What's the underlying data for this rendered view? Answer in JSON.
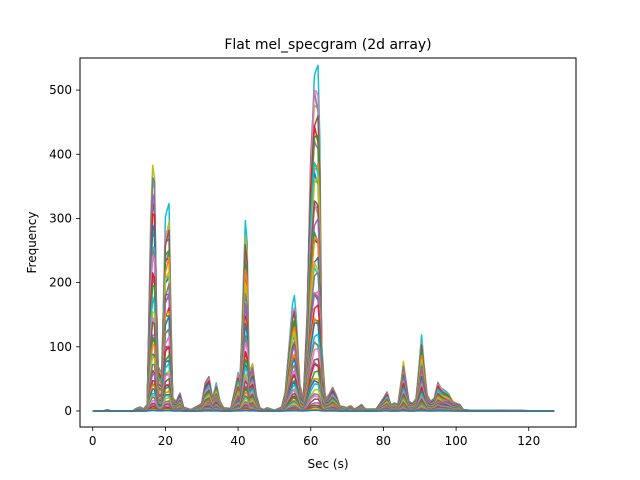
{
  "chart_data": {
    "type": "line",
    "title": "Flat mel_specgram (2d array)",
    "xlabel": "Sec (s)",
    "ylabel": "Frequency",
    "xlim": [
      -3.5,
      133
    ],
    "ylim": [
      -25,
      550
    ],
    "x_ticks": [
      0,
      20,
      40,
      60,
      80,
      100,
      120
    ],
    "y_ticks": [
      0,
      100,
      200,
      300,
      400,
      500
    ],
    "x_range": [
      0,
      127
    ],
    "series_count": 50,
    "grid": false,
    "legend": "none",
    "colors": [
      "#1f77b4",
      "#ff7f0e",
      "#2ca02c",
      "#d62728",
      "#9467bd",
      "#8c564b",
      "#e377c2",
      "#7f7f7f",
      "#bcbd22",
      "#17becf"
    ],
    "envelope": [
      {
        "x": 0,
        "y": 0
      },
      {
        "x": 3,
        "y": 0
      },
      {
        "x": 4,
        "y": 2
      },
      {
        "x": 5,
        "y": 0
      },
      {
        "x": 11,
        "y": 0
      },
      {
        "x": 12,
        "y": 4
      },
      {
        "x": 13,
        "y": 6
      },
      {
        "x": 14,
        "y": 3
      },
      {
        "x": 15,
        "y": 10
      },
      {
        "x": 16,
        "y": 300
      },
      {
        "x": 16.5,
        "y": 377
      },
      {
        "x": 17,
        "y": 365
      },
      {
        "x": 17.5,
        "y": 180
      },
      {
        "x": 18,
        "y": 70
      },
      {
        "x": 19,
        "y": 60
      },
      {
        "x": 20,
        "y": 290
      },
      {
        "x": 21,
        "y": 305
      },
      {
        "x": 21.5,
        "y": 150
      },
      {
        "x": 22,
        "y": 20
      },
      {
        "x": 23,
        "y": 15
      },
      {
        "x": 24,
        "y": 28
      },
      {
        "x": 25,
        "y": 6
      },
      {
        "x": 27,
        "y": 2
      },
      {
        "x": 28,
        "y": 5
      },
      {
        "x": 29,
        "y": 8
      },
      {
        "x": 30,
        "y": 12
      },
      {
        "x": 31,
        "y": 45
      },
      {
        "x": 32,
        "y": 54
      },
      {
        "x": 33,
        "y": 20
      },
      {
        "x": 34,
        "y": 42
      },
      {
        "x": 35,
        "y": 15
      },
      {
        "x": 36,
        "y": 5
      },
      {
        "x": 38,
        "y": 4
      },
      {
        "x": 39,
        "y": 30
      },
      {
        "x": 40,
        "y": 60
      },
      {
        "x": 40.5,
        "y": 45
      },
      {
        "x": 41,
        "y": 110
      },
      {
        "x": 42,
        "y": 280
      },
      {
        "x": 42.5,
        "y": 250
      },
      {
        "x": 43,
        "y": 60
      },
      {
        "x": 44,
        "y": 72
      },
      {
        "x": 45,
        "y": 25
      },
      {
        "x": 46,
        "y": 5
      },
      {
        "x": 47,
        "y": 2
      },
      {
        "x": 48,
        "y": 5
      },
      {
        "x": 49,
        "y": 3
      },
      {
        "x": 50,
        "y": 1
      },
      {
        "x": 52,
        "y": 6
      },
      {
        "x": 53,
        "y": 30
      },
      {
        "x": 54,
        "y": 100
      },
      {
        "x": 55,
        "y": 160
      },
      {
        "x": 55.5,
        "y": 170
      },
      {
        "x": 56,
        "y": 140
      },
      {
        "x": 57,
        "y": 40
      },
      {
        "x": 58,
        "y": 20
      },
      {
        "x": 59,
        "y": 150
      },
      {
        "x": 60,
        "y": 400
      },
      {
        "x": 61,
        "y": 523
      },
      {
        "x": 62,
        "y": 515
      },
      {
        "x": 62.5,
        "y": 400
      },
      {
        "x": 63,
        "y": 100
      },
      {
        "x": 64,
        "y": 20
      },
      {
        "x": 65,
        "y": 25
      },
      {
        "x": 66,
        "y": 37
      },
      {
        "x": 67,
        "y": 25
      },
      {
        "x": 68,
        "y": 8
      },
      {
        "x": 70,
        "y": 5
      },
      {
        "x": 71,
        "y": 8
      },
      {
        "x": 72,
        "y": 3
      },
      {
        "x": 73,
        "y": 6
      },
      {
        "x": 74,
        "y": 10
      },
      {
        "x": 75,
        "y": 3
      },
      {
        "x": 78,
        "y": 3
      },
      {
        "x": 80,
        "y": 20
      },
      {
        "x": 81,
        "y": 30
      },
      {
        "x": 82,
        "y": 10
      },
      {
        "x": 83,
        "y": 12
      },
      {
        "x": 84,
        "y": 10
      },
      {
        "x": 85,
        "y": 50
      },
      {
        "x": 85.5,
        "y": 75
      },
      {
        "x": 86,
        "y": 55
      },
      {
        "x": 87,
        "y": 15
      },
      {
        "x": 88,
        "y": 12
      },
      {
        "x": 89,
        "y": 20
      },
      {
        "x": 90,
        "y": 80
      },
      {
        "x": 90.5,
        "y": 112
      },
      {
        "x": 91,
        "y": 80
      },
      {
        "x": 92,
        "y": 25
      },
      {
        "x": 93,
        "y": 15
      },
      {
        "x": 94,
        "y": 20
      },
      {
        "x": 95,
        "y": 45
      },
      {
        "x": 96,
        "y": 35
      },
      {
        "x": 97,
        "y": 30
      },
      {
        "x": 98,
        "y": 25
      },
      {
        "x": 99,
        "y": 15
      },
      {
        "x": 100,
        "y": 12
      },
      {
        "x": 101,
        "y": 10
      },
      {
        "x": 102,
        "y": 2
      },
      {
        "x": 104,
        "y": 1
      },
      {
        "x": 110,
        "y": 1
      },
      {
        "x": 127,
        "y": 0
      }
    ]
  }
}
